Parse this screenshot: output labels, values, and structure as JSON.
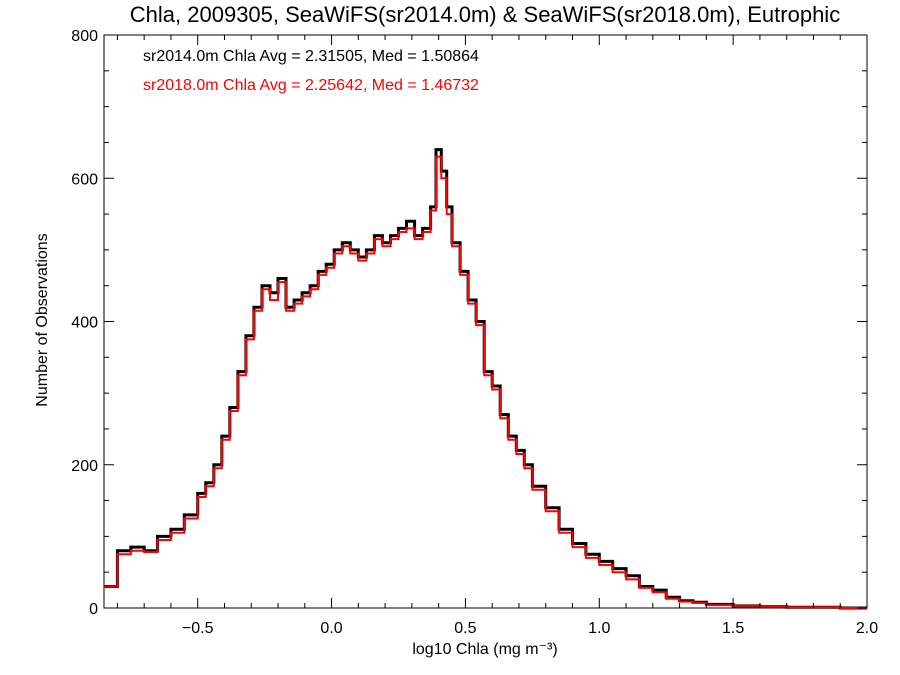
{
  "chart_data": {
    "type": "line",
    "title": "Chla, 2009305, SeaWiFS(sr2014.0m) & SeaWiFS(sr2018.0m), Eutrophic",
    "xlabel": "log10 Chla (mg m⁻³)",
    "ylabel": "Number of Observations",
    "xlim": [
      -0.85,
      2.0
    ],
    "ylim": [
      0,
      800
    ],
    "xticks": [
      -0.5,
      0.0,
      0.5,
      1.0,
      1.5,
      2.0
    ],
    "xtick_labels": [
      "−0.5",
      "0.0",
      "0.5",
      "1.0",
      "1.5",
      "2.0"
    ],
    "yticks": [
      0,
      200,
      400,
      600,
      800
    ],
    "ytick_labels": [
      "0",
      "200",
      "400",
      "600",
      "800"
    ],
    "grid": false,
    "step": "histogram",
    "x": [
      -0.85,
      -0.8,
      -0.75,
      -0.7,
      -0.65,
      -0.6,
      -0.55,
      -0.5,
      -0.47,
      -0.44,
      -0.41,
      -0.38,
      -0.35,
      -0.32,
      -0.29,
      -0.26,
      -0.23,
      -0.2,
      -0.17,
      -0.14,
      -0.11,
      -0.08,
      -0.05,
      -0.02,
      0.01,
      0.04,
      0.07,
      0.1,
      0.13,
      0.16,
      0.19,
      0.22,
      0.25,
      0.28,
      0.31,
      0.34,
      0.37,
      0.39,
      0.41,
      0.43,
      0.45,
      0.48,
      0.51,
      0.54,
      0.57,
      0.6,
      0.63,
      0.66,
      0.69,
      0.72,
      0.75,
      0.8,
      0.85,
      0.9,
      0.95,
      1.0,
      1.05,
      1.1,
      1.15,
      1.2,
      1.25,
      1.3,
      1.35,
      1.4,
      1.5,
      1.6,
      1.7,
      1.8,
      1.9,
      2.0
    ],
    "series": [
      {
        "name": "sr2014.0m",
        "color": "#000000",
        "values": [
          30,
          80,
          85,
          80,
          100,
          110,
          130,
          160,
          175,
          200,
          240,
          280,
          330,
          380,
          420,
          450,
          440,
          460,
          420,
          430,
          440,
          450,
          470,
          480,
          500,
          510,
          500,
          490,
          500,
          520,
          510,
          520,
          530,
          540,
          520,
          530,
          560,
          640,
          610,
          560,
          510,
          470,
          430,
          400,
          330,
          310,
          270,
          240,
          220,
          200,
          170,
          140,
          110,
          90,
          75,
          65,
          55,
          45,
          30,
          25,
          15,
          10,
          8,
          5,
          3,
          2,
          1,
          1,
          0,
          0
        ]
      },
      {
        "name": "sr2018.0m",
        "color": "#ff0000",
        "values": [
          30,
          75,
          80,
          78,
          95,
          105,
          125,
          155,
          170,
          195,
          235,
          275,
          325,
          375,
          415,
          445,
          430,
          455,
          415,
          425,
          435,
          445,
          465,
          475,
          495,
          505,
          495,
          485,
          495,
          515,
          505,
          515,
          525,
          530,
          515,
          525,
          555,
          630,
          600,
          550,
          505,
          465,
          425,
          395,
          325,
          305,
          265,
          235,
          215,
          195,
          165,
          135,
          105,
          85,
          70,
          60,
          50,
          40,
          28,
          22,
          13,
          9,
          7,
          4,
          3,
          2,
          1,
          1,
          0,
          0
        ]
      }
    ],
    "annotations": [
      {
        "text": "sr2014.0m Chla Avg = 2.31505, Med = 1.50864",
        "color": "#000000"
      },
      {
        "text": "sr2018.0m Chla Avg = 2.25642, Med = 1.46732",
        "color": "#ff0000"
      }
    ]
  }
}
